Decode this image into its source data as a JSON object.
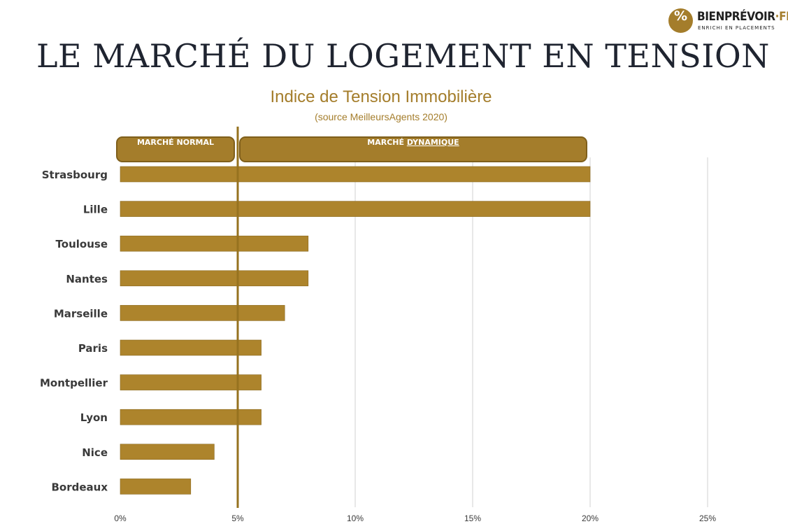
{
  "brand": {
    "logo_symbol": "%",
    "name": "BIENPRÉVOIR",
    "name_suffix_dot": "·",
    "name_suffix": "FR",
    "tagline": "ENRICHI EN PLACEMENTS"
  },
  "page_title": "LE MARCHÉ DU LOGEMENT EN TENSION",
  "colors": {
    "bar": "#ad842c",
    "bar_outline": "#8a6920",
    "accent": "#a47d2b",
    "grid": "#d9d9d9",
    "threshold_line": "#96721f",
    "label_text": "#3a3a3a"
  },
  "chart_data": {
    "type": "bar",
    "orientation": "horizontal",
    "title": "Indice de Tension Immobilière",
    "subtitle": "(source MeilleursAgents 2020)",
    "categories": [
      "Strasbourg",
      "Lille",
      "Toulouse",
      "Nantes",
      "Marseille",
      "Paris",
      "Montpellier",
      "Lyon",
      "Nice",
      "Bordeaux"
    ],
    "values": [
      20,
      20,
      8,
      8,
      7,
      6,
      6,
      6,
      4,
      3
    ],
    "unit": "%",
    "xlim": [
      0,
      25
    ],
    "x_ticks": [
      0,
      5,
      10,
      15,
      20,
      25
    ],
    "x_tick_labels": [
      "0%",
      "5%",
      "10%",
      "15%",
      "20%",
      "25%"
    ],
    "threshold": 5,
    "zones": [
      {
        "label": "MARCHÉ NORMAL",
        "range": [
          0,
          5
        ]
      },
      {
        "label_prefix": "MARCHÉ ",
        "label_emphasis": "DYNAMIQUE",
        "range": [
          5,
          20
        ]
      }
    ],
    "grid": true,
    "legend": "none"
  }
}
